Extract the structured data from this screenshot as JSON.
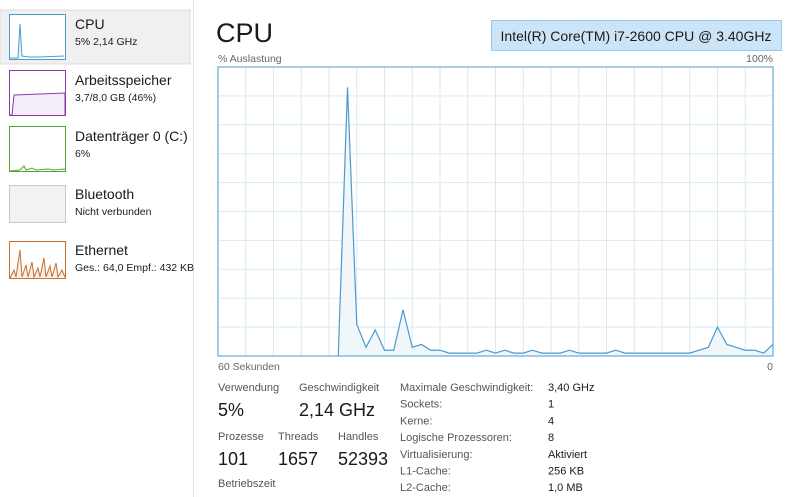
{
  "sidebar": [
    {
      "title": "CPU",
      "subtitle": "5% 2,14 GHz"
    },
    {
      "title": "Arbeitsspeicher",
      "subtitle": "3,7/8,0 GB (46%)"
    },
    {
      "title": "Datenträger 0 (C:)",
      "subtitle": "6%"
    },
    {
      "title": "Bluetooth",
      "subtitle": "Nicht verbunden"
    },
    {
      "title": "Ethernet",
      "subtitle": "Ges.: 64,0 Empf.: 432 KB"
    }
  ],
  "header": {
    "title": "CPU",
    "processor": "Intel(R) Core(TM) i7-2600 CPU @ 3.40GHz"
  },
  "graph": {
    "y_label": "% Auslastung",
    "y_max_label": "100%",
    "x_left_label": "60 Sekunden",
    "x_right_label": "0",
    "ylim": [
      0,
      100
    ],
    "color": "#4a9bd1",
    "values": [
      null,
      null,
      null,
      null,
      null,
      null,
      null,
      null,
      null,
      null,
      null,
      null,
      null,
      0,
      93,
      11,
      3,
      9,
      2,
      2,
      16,
      3,
      4,
      2,
      2,
      1,
      1,
      1,
      1,
      2,
      1,
      2,
      1,
      1,
      2,
      1,
      1,
      1,
      2,
      1,
      1,
      1,
      1,
      2,
      1,
      1,
      1,
      1,
      1,
      1,
      1,
      1,
      2,
      3,
      10,
      4,
      3,
      2,
      2,
      1,
      4
    ]
  },
  "stats": [
    {
      "label": "Verwendung",
      "value": "5%"
    },
    {
      "label": "Geschwindigkeit",
      "value": "2,14 GHz"
    },
    {
      "label": "Prozesse",
      "value": "101"
    },
    {
      "label": "Threads",
      "value": "1657"
    },
    {
      "label": "Handles",
      "value": "52393"
    },
    {
      "label": "Betriebszeit"
    }
  ],
  "details": [
    [
      "Maximale Geschwindigkeit:",
      "3,40 GHz"
    ],
    [
      "Sockets:",
      "1"
    ],
    [
      "Kerne:",
      "4"
    ],
    [
      "Logische Prozessoren:",
      "8"
    ],
    [
      "Virtualisierung:",
      "Aktiviert"
    ],
    [
      "L1-Cache:",
      "256 KB"
    ],
    [
      "L2-Cache:",
      "1,0 MB"
    ]
  ]
}
